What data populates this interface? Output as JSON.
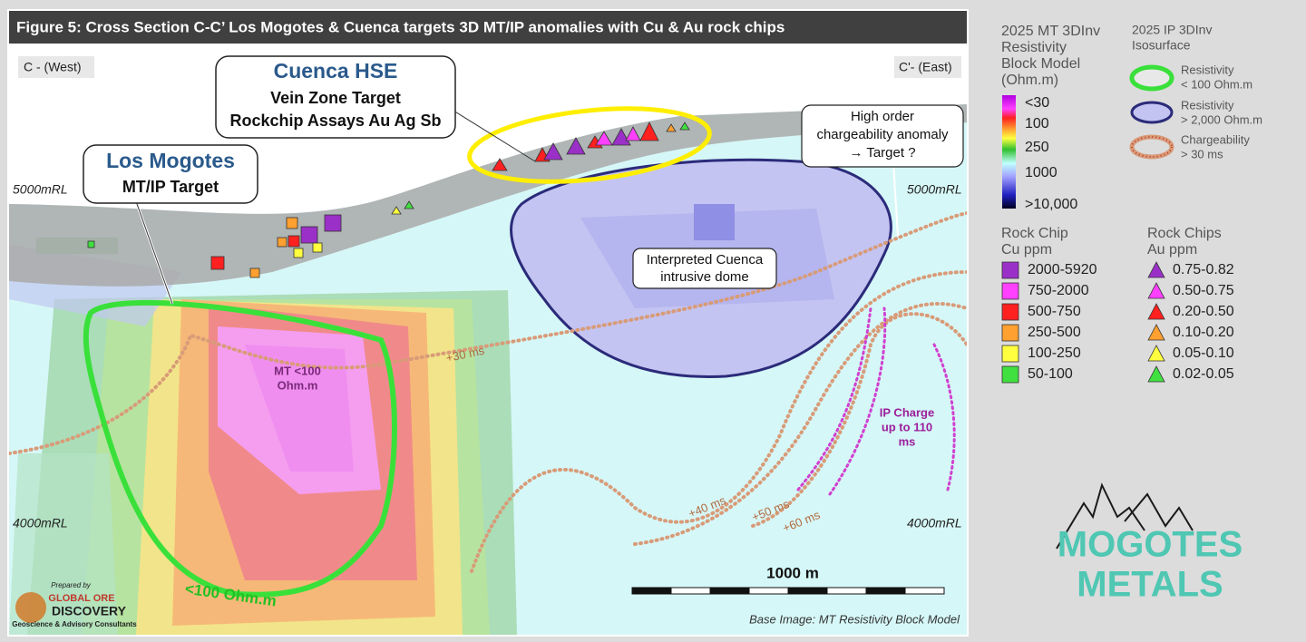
{
  "title": "Figure 5: Cross Section C-C’ Los Mogotes & Cuenca targets 3D MT/IP anomalies with Cu & Au rock chips",
  "section": {
    "west_label": "C - (West)",
    "east_label": "C'- (East)",
    "elevations": [
      "5000mRL",
      "5000mRL",
      "4000mRL",
      "4000mRL"
    ]
  },
  "callouts": {
    "cuenca": {
      "title": "Cuenca HSE",
      "lines": [
        "Vein Zone Target",
        "Rockchip Assays Au Ag Sb"
      ]
    },
    "los_mogotes": {
      "title": "Los Mogotes",
      "lines": [
        "MT/IP Target"
      ]
    },
    "chargeability": {
      "lines": [
        "High order",
        "chargeability anomaly",
        "→ Target ?"
      ]
    },
    "dome": {
      "lines": [
        "Interpreted Cuenca",
        "intrusive dome"
      ]
    }
  },
  "annotations": {
    "mt_anomaly": [
      "MT <100",
      "Ohm.m"
    ],
    "contours": [
      "+30 ms",
      "+40 ms",
      "+50 ms",
      "+60 ms"
    ],
    "ip_charge": [
      "IP Charge",
      "up to 110",
      "ms"
    ],
    "resistivity_outline": "<100 Ohm.m"
  },
  "scale_bar": "1000 m",
  "caption": "Base Image: MT Resistivity Block Model",
  "prepared_by": [
    "Prepared by",
    "GLOBAL ORE",
    "DISCOVERY",
    "Geoscience & Advisory Consultants"
  ],
  "legend": {
    "mt": {
      "title": [
        "2025 MT 3DInv",
        "Resistivity",
        "Block Model",
        "(Ohm.m)"
      ],
      "scale": [
        "<30",
        "100",
        "250",
        "1000",
        ">10,000"
      ]
    },
    "ip": {
      "title": [
        "2025 IP 3DInv",
        "Isosurface"
      ],
      "items": [
        [
          "Resistivity",
          "< 100 Ohm.m"
        ],
        [
          "Resistivity",
          "> 2,000 Ohm.m"
        ],
        [
          "Chargeability",
          "> 30 ms"
        ]
      ]
    },
    "cu": {
      "title": [
        "Rock Chip",
        "Cu ppm"
      ],
      "items": [
        "2000-5920",
        "750-2000",
        "500-750",
        "250-500",
        "100-250",
        "50-100"
      ]
    },
    "au": {
      "title": [
        "Rock Chips",
        "Au ppm"
      ],
      "items": [
        "0.75-0.82",
        "0.50-0.75",
        "0.20-0.50",
        "0.10-0.20",
        "0.05-0.10",
        "0.02-0.05"
      ]
    }
  },
  "logo": [
    "MOGOTES",
    "METALS"
  ]
}
